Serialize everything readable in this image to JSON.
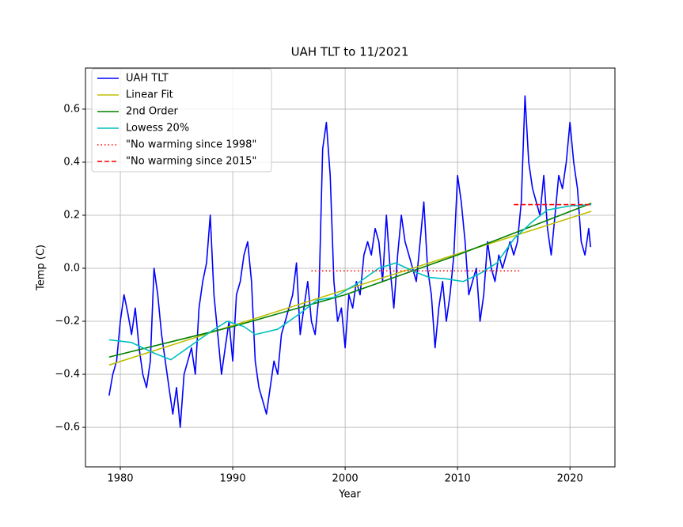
{
  "chart_data": {
    "type": "line",
    "title": "UAH TLT to 11/2021",
    "x_label": "Year",
    "y_label": "Temp (C)",
    "xlim": [
      1976.9,
      2024.0
    ],
    "ylim": [
      -0.749,
      0.755
    ],
    "xticks": [
      1980,
      1990,
      2000,
      2010,
      2020
    ],
    "yticks": [
      {
        "value": -0.6,
        "label": "−0.6"
      },
      {
        "value": -0.4,
        "label": "−0.4"
      },
      {
        "value": -0.2,
        "label": "−0.2"
      },
      {
        "value": 0,
        "label": "0.0"
      },
      0.2,
      0.4,
      0.6
    ],
    "grid": true,
    "legend": "upper left",
    "series": [
      {
        "name": "UAH TLT",
        "color": "#0000ff",
        "linestyle": "solid",
        "x": [
          1979,
          1979.33,
          1979.67,
          1980,
          1980.33,
          1980.67,
          1981,
          1981.33,
          1981.67,
          1982,
          1982.33,
          1982.67,
          1983,
          1983.33,
          1983.67,
          1984,
          1984.33,
          1984.67,
          1985,
          1985.33,
          1985.67,
          1986,
          1986.33,
          1986.67,
          1987,
          1987.33,
          1987.67,
          1988,
          1988.33,
          1988.67,
          1989,
          1989.33,
          1989.67,
          1990,
          1990.33,
          1990.67,
          1991,
          1991.33,
          1991.67,
          1992,
          1992.33,
          1992.67,
          1993,
          1993.33,
          1993.67,
          1994,
          1994.33,
          1994.67,
          1995,
          1995.33,
          1995.67,
          1996,
          1996.33,
          1996.67,
          1997,
          1997.33,
          1997.67,
          1998,
          1998.33,
          1998.67,
          1999,
          1999.33,
          1999.67,
          2000,
          2000.33,
          2000.67,
          2001,
          2001.33,
          2001.67,
          2002,
          2002.33,
          2002.67,
          2003,
          2003.33,
          2003.67,
          2004,
          2004.33,
          2004.67,
          2005,
          2005.33,
          2005.67,
          2006,
          2006.33,
          2006.67,
          2007,
          2007.33,
          2007.67,
          2008,
          2008.33,
          2008.67,
          2009,
          2009.33,
          2009.67,
          2010,
          2010.33,
          2010.67,
          2011,
          2011.33,
          2011.67,
          2012,
          2012.33,
          2012.67,
          2013,
          2013.33,
          2013.67,
          2014,
          2014.33,
          2014.67,
          2015,
          2015.33,
          2015.67,
          2016,
          2016.33,
          2016.67,
          2017,
          2017.33,
          2017.67,
          2018,
          2018.33,
          2018.67,
          2019,
          2019.33,
          2019.67,
          2020,
          2020.33,
          2020.67,
          2021,
          2021.33,
          2021.67,
          2021.83
        ],
        "values": [
          -0.48,
          -0.4,
          -0.35,
          -0.2,
          -0.1,
          -0.17,
          -0.25,
          -0.15,
          -0.3,
          -0.4,
          -0.45,
          -0.35,
          0.0,
          -0.1,
          -0.25,
          -0.35,
          -0.45,
          -0.55,
          -0.45,
          -0.6,
          -0.4,
          -0.35,
          -0.3,
          -0.4,
          -0.15,
          -0.05,
          0.02,
          0.2,
          -0.1,
          -0.25,
          -0.4,
          -0.3,
          -0.2,
          -0.35,
          -0.1,
          -0.05,
          0.05,
          0.1,
          -0.05,
          -0.35,
          -0.45,
          -0.5,
          -0.55,
          -0.45,
          -0.35,
          -0.4,
          -0.25,
          -0.2,
          -0.15,
          -0.1,
          0.02,
          -0.25,
          -0.15,
          -0.05,
          -0.2,
          -0.25,
          -0.1,
          0.45,
          0.55,
          0.35,
          -0.05,
          -0.2,
          -0.15,
          -0.3,
          -0.1,
          -0.15,
          -0.05,
          -0.1,
          0.05,
          0.1,
          0.05,
          0.15,
          0.1,
          -0.05,
          0.2,
          0.0,
          -0.15,
          0.05,
          0.2,
          0.1,
          0.05,
          0.0,
          -0.05,
          0.1,
          0.25,
          0.0,
          -0.1,
          -0.3,
          -0.15,
          -0.05,
          -0.2,
          -0.1,
          0.05,
          0.35,
          0.25,
          0.1,
          -0.1,
          -0.05,
          0.0,
          -0.2,
          -0.1,
          0.1,
          0.0,
          -0.05,
          0.05,
          0.0,
          0.05,
          0.1,
          0.05,
          0.1,
          0.25,
          0.65,
          0.4,
          0.3,
          0.25,
          0.2,
          0.35,
          0.15,
          0.05,
          0.2,
          0.35,
          0.3,
          0.4,
          0.55,
          0.4,
          0.3,
          0.1,
          0.05,
          0.15,
          0.08
        ]
      },
      {
        "name": "Linear Fit",
        "color": "#bfbf00",
        "linestyle": "solid",
        "x": [
          1979,
          2021.9
        ],
        "values": [
          -0.365,
          0.215
        ]
      },
      {
        "name": "2nd Order",
        "color": "#008000",
        "linestyle": "solid",
        "x": [
          1979,
          1990,
          2000,
          2010,
          2021.9
        ],
        "values": [
          -0.335,
          -0.22,
          -0.1,
          0.05,
          0.245
        ]
      },
      {
        "name": "Lowess 20%",
        "color": "#00bfbf",
        "linestyle": "solid",
        "x": [
          1979,
          1981,
          1983,
          1984.5,
          1986,
          1988,
          1989.5,
          1991,
          1992,
          1994,
          1996,
          1997.5,
          1999,
          2001,
          2003,
          2004.5,
          2006,
          2007.5,
          2009,
          2010.5,
          2012,
          2013.5,
          2015,
          2016.5,
          2018,
          2020,
          2021.9
        ],
        "values": [
          -0.27,
          -0.28,
          -0.32,
          -0.345,
          -0.3,
          -0.24,
          -0.2,
          -0.22,
          -0.25,
          -0.23,
          -0.17,
          -0.12,
          -0.11,
          -0.06,
          0.0,
          0.02,
          -0.01,
          -0.035,
          -0.04,
          -0.05,
          -0.02,
          0.02,
          0.11,
          0.17,
          0.22,
          0.235,
          0.24
        ]
      },
      {
        "name": "\"No warming since 1998\"",
        "color": "#ff0000",
        "linestyle": "dotted",
        "x": [
          1997,
          2015.5
        ],
        "values": [
          -0.01,
          -0.01
        ]
      },
      {
        "name": "\"No warming since 2015\"",
        "color": "#ff0000",
        "linestyle": "dashed",
        "x": [
          2015,
          2021.9
        ],
        "values": [
          0.24,
          0.24
        ]
      }
    ]
  }
}
